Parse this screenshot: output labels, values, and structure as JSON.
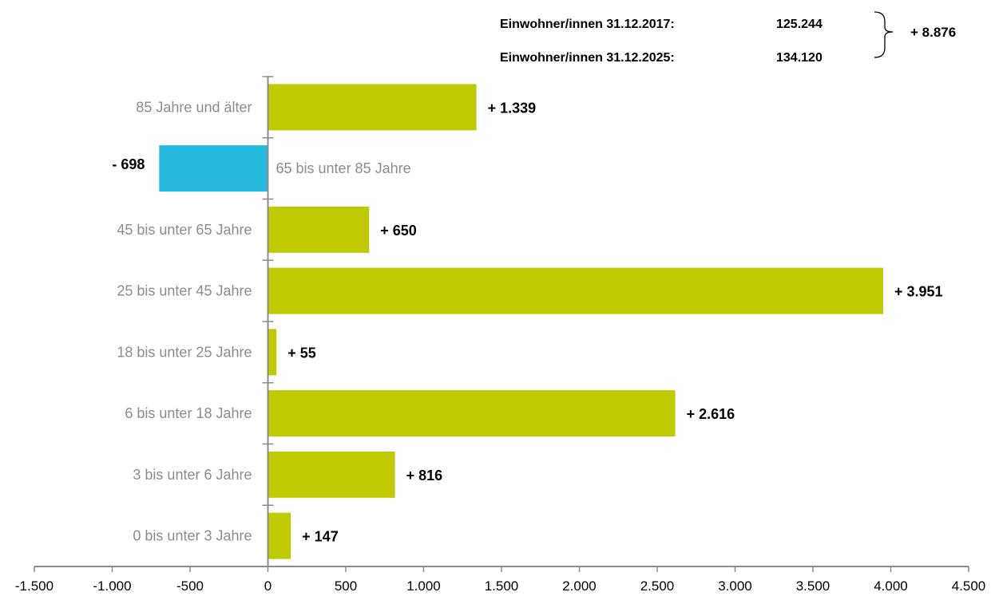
{
  "summary": {
    "row1_label": "Einwohner/innen 31.12.2017:",
    "row1_value": "125.244",
    "row2_label": "Einwohner/innen 31.12.2025:",
    "row2_value": "134.120",
    "difference": "+ 8.876"
  },
  "chart_data": {
    "type": "bar",
    "orientation": "horizontal",
    "categories": [
      "85 Jahre und älter",
      "65 bis unter 85 Jahre",
      "45 bis unter 65 Jahre",
      "25 bis unter 45 Jahre",
      "18 bis unter 25 Jahre",
      "6 bis unter 18 Jahre",
      "3 bis unter 6 Jahre",
      "0 bis unter 3 Jahre"
    ],
    "values": [
      1339,
      -698,
      650,
      3951,
      55,
      2616,
      816,
      147
    ],
    "value_labels": [
      "+ 1.339",
      "- 698",
      "+ 650",
      "+ 3.951",
      "+ 55",
      "+ 2.616",
      "+ 816",
      "+ 147"
    ],
    "xlim": [
      -1500,
      4500
    ],
    "xticks": [
      -1500,
      -1000,
      -500,
      0,
      500,
      1000,
      1500,
      2000,
      2500,
      3000,
      3500,
      4000,
      4500
    ],
    "xtick_labels": [
      "-1.500",
      "-1.000",
      "-500",
      "0",
      "500",
      "1.000",
      "1.500",
      "2.000",
      "2.500",
      "3.000",
      "3.500",
      "4.000",
      "4.500"
    ],
    "colors": {
      "positive": "#bfca00",
      "negative": "#24b7dc",
      "axis": "#8c8c8c"
    },
    "title": "",
    "xlabel": "",
    "ylabel": "",
    "grid": false,
    "legend": "none"
  }
}
